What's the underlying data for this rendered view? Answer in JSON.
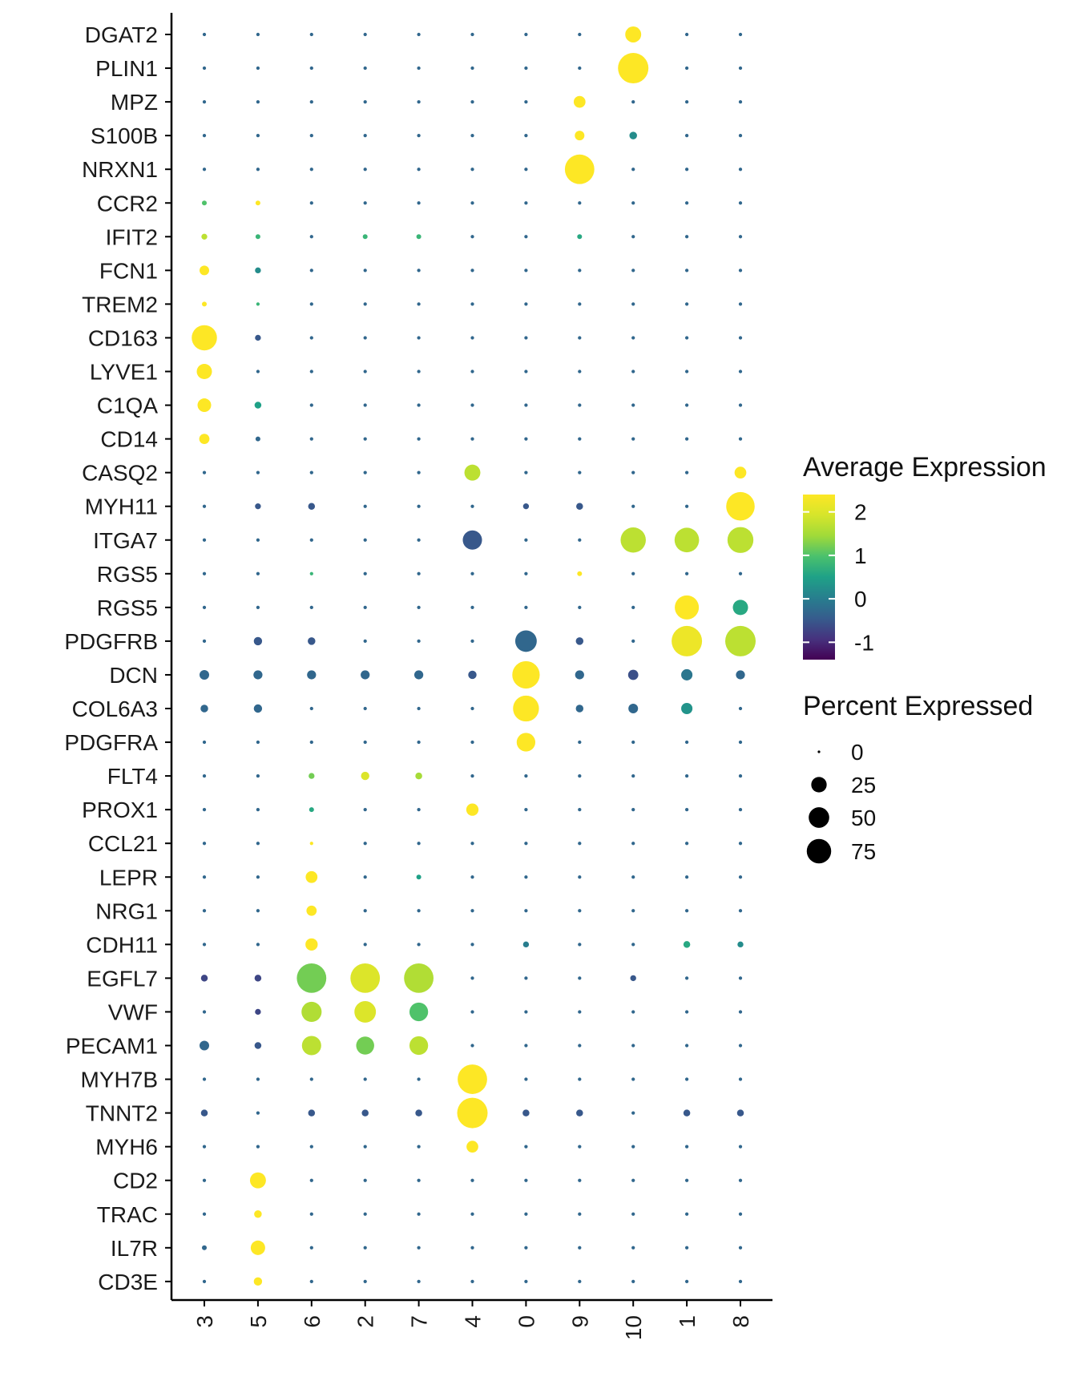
{
  "chart_data": {
    "type": "dotplot",
    "genes": [
      "DGAT2",
      "PLIN1",
      "MPZ",
      "S100B",
      "NRXN1",
      "CCR2",
      "IFIT2",
      "FCN1",
      "TREM2",
      "CD163",
      "LYVE1",
      "C1QA",
      "CD14",
      "CASQ2",
      "MYH11",
      "ITGA7",
      "RGS5",
      "RGS5",
      "PDGFRB",
      "DCN",
      "COL6A3",
      "PDGFRA",
      "FLT4",
      "PROX1",
      "CCL21",
      "LEPR",
      "NRG1",
      "CDH11",
      "EGFL7",
      "VWF",
      "PECAM1",
      "MYH7B",
      "TNNT2",
      "MYH6",
      "CD2",
      "TRAC",
      "IL7R",
      "CD3E"
    ],
    "clusters": [
      "3",
      "5",
      "6",
      "2",
      "7",
      "4",
      "0",
      "9",
      "10",
      "1",
      "8"
    ],
    "default_point": {
      "pct": 1,
      "avg": -0.3
    },
    "points": [
      {
        "gene": 0,
        "cluster": 8,
        "pct": 22,
        "avg": 2.4
      },
      {
        "gene": 1,
        "cluster": 8,
        "pct": 80,
        "avg": 2.4
      },
      {
        "gene": 2,
        "cluster": 7,
        "pct": 12,
        "avg": 2.4
      },
      {
        "gene": 3,
        "cluster": 7,
        "pct": 8,
        "avg": 2.4
      },
      {
        "gene": 3,
        "cluster": 8,
        "pct": 5,
        "avg": 0.2
      },
      {
        "gene": 4,
        "cluster": 7,
        "pct": 75,
        "avg": 2.4
      },
      {
        "gene": 5,
        "cluster": 0,
        "pct": 2,
        "avg": 1.0
      },
      {
        "gene": 5,
        "cluster": 1,
        "pct": 2,
        "avg": 2.4
      },
      {
        "gene": 6,
        "cluster": 0,
        "pct": 3,
        "avg": 1.7
      },
      {
        "gene": 6,
        "cluster": 1,
        "pct": 2,
        "avg": 0.8
      },
      {
        "gene": 6,
        "cluster": 3,
        "pct": 2,
        "avg": 0.8
      },
      {
        "gene": 6,
        "cluster": 4,
        "pct": 2,
        "avg": 0.8
      },
      {
        "gene": 6,
        "cluster": 7,
        "pct": 2,
        "avg": 0.6
      },
      {
        "gene": 7,
        "cluster": 0,
        "pct": 8,
        "avg": 2.4
      },
      {
        "gene": 7,
        "cluster": 1,
        "pct": 3,
        "avg": 0.2
      },
      {
        "gene": 8,
        "cluster": 0,
        "pct": 2,
        "avg": 2.4
      },
      {
        "gene": 8,
        "cluster": 1,
        "pct": 1,
        "avg": 0.8
      },
      {
        "gene": 9,
        "cluster": 0,
        "pct": 55,
        "avg": 2.4
      },
      {
        "gene": 9,
        "cluster": 1,
        "pct": 3,
        "avg": -0.5
      },
      {
        "gene": 10,
        "cluster": 0,
        "pct": 20,
        "avg": 2.4
      },
      {
        "gene": 11,
        "cluster": 0,
        "pct": 16,
        "avg": 2.4
      },
      {
        "gene": 11,
        "cluster": 1,
        "pct": 4,
        "avg": 0.5
      },
      {
        "gene": 12,
        "cluster": 0,
        "pct": 9,
        "avg": 2.4
      },
      {
        "gene": 12,
        "cluster": 1,
        "pct": 2,
        "avg": -0.3
      },
      {
        "gene": 13,
        "cluster": 5,
        "pct": 22,
        "avg": 1.7
      },
      {
        "gene": 13,
        "cluster": 10,
        "pct": 12,
        "avg": 2.4
      },
      {
        "gene": 14,
        "cluster": 1,
        "pct": 3,
        "avg": -0.5
      },
      {
        "gene": 14,
        "cluster": 2,
        "pct": 4,
        "avg": -0.5
      },
      {
        "gene": 14,
        "cluster": 6,
        "pct": 3,
        "avg": -0.5
      },
      {
        "gene": 14,
        "cluster": 7,
        "pct": 4,
        "avg": -0.5
      },
      {
        "gene": 14,
        "cluster": 10,
        "pct": 70,
        "avg": 2.4
      },
      {
        "gene": 15,
        "cluster": 5,
        "pct": 32,
        "avg": -0.5
      },
      {
        "gene": 15,
        "cluster": 8,
        "pct": 55,
        "avg": 1.7
      },
      {
        "gene": 15,
        "cluster": 9,
        "pct": 52,
        "avg": 1.7
      },
      {
        "gene": 15,
        "cluster": 10,
        "pct": 58,
        "avg": 1.7
      },
      {
        "gene": 16,
        "cluster": 2,
        "pct": 1,
        "avg": 0.8
      },
      {
        "gene": 16,
        "cluster": 7,
        "pct": 2,
        "avg": 2.4
      },
      {
        "gene": 17,
        "cluster": 9,
        "pct": 50,
        "avg": 2.4
      },
      {
        "gene": 17,
        "cluster": 10,
        "pct": 20,
        "avg": 0.6
      },
      {
        "gene": 18,
        "cluster": 1,
        "pct": 6,
        "avg": -0.5
      },
      {
        "gene": 18,
        "cluster": 2,
        "pct": 5,
        "avg": -0.5
      },
      {
        "gene": 18,
        "cluster": 6,
        "pct": 40,
        "avg": -0.3
      },
      {
        "gene": 18,
        "cluster": 7,
        "pct": 5,
        "avg": -0.5
      },
      {
        "gene": 18,
        "cluster": 9,
        "pct": 80,
        "avg": 2.2
      },
      {
        "gene": 18,
        "cluster": 10,
        "pct": 80,
        "avg": 1.7
      },
      {
        "gene": 19,
        "cluster": 0,
        "pct": 8,
        "avg": -0.3
      },
      {
        "gene": 19,
        "cluster": 1,
        "pct": 7,
        "avg": -0.3
      },
      {
        "gene": 19,
        "cluster": 2,
        "pct": 7,
        "avg": -0.3
      },
      {
        "gene": 19,
        "cluster": 3,
        "pct": 7,
        "avg": -0.3
      },
      {
        "gene": 19,
        "cluster": 4,
        "pct": 7,
        "avg": -0.3
      },
      {
        "gene": 19,
        "cluster": 5,
        "pct": 6,
        "avg": -0.5
      },
      {
        "gene": 19,
        "cluster": 6,
        "pct": 65,
        "avg": 2.4
      },
      {
        "gene": 19,
        "cluster": 7,
        "pct": 7,
        "avg": -0.3
      },
      {
        "gene": 19,
        "cluster": 8,
        "pct": 9,
        "avg": -0.6
      },
      {
        "gene": 19,
        "cluster": 9,
        "pct": 11,
        "avg": -0.1
      },
      {
        "gene": 19,
        "cluster": 10,
        "pct": 7,
        "avg": -0.3
      },
      {
        "gene": 20,
        "cluster": 0,
        "pct": 5,
        "avg": -0.3
      },
      {
        "gene": 20,
        "cluster": 1,
        "pct": 6,
        "avg": -0.3
      },
      {
        "gene": 20,
        "cluster": 6,
        "pct": 58,
        "avg": 2.4
      },
      {
        "gene": 20,
        "cluster": 7,
        "pct": 5,
        "avg": -0.3
      },
      {
        "gene": 20,
        "cluster": 8,
        "pct": 8,
        "avg": -0.3
      },
      {
        "gene": 20,
        "cluster": 9,
        "pct": 11,
        "avg": 0.3
      },
      {
        "gene": 21,
        "cluster": 6,
        "pct": 30,
        "avg": 2.4
      },
      {
        "gene": 22,
        "cluster": 2,
        "pct": 3,
        "avg": 1.2
      },
      {
        "gene": 22,
        "cluster": 3,
        "pct": 6,
        "avg": 2.0
      },
      {
        "gene": 22,
        "cluster": 4,
        "pct": 4,
        "avg": 1.5
      },
      {
        "gene": 23,
        "cluster": 2,
        "pct": 2,
        "avg": 0.6
      },
      {
        "gene": 23,
        "cluster": 5,
        "pct": 13,
        "avg": 2.4
      },
      {
        "gene": 24,
        "cluster": 2,
        "pct": 1,
        "avg": 2.4
      },
      {
        "gene": 25,
        "cluster": 2,
        "pct": 12,
        "avg": 2.4
      },
      {
        "gene": 25,
        "cluster": 4,
        "pct": 2,
        "avg": 0.5
      },
      {
        "gene": 26,
        "cluster": 2,
        "pct": 9,
        "avg": 2.4
      },
      {
        "gene": 27,
        "cluster": 2,
        "pct": 13,
        "avg": 2.4
      },
      {
        "gene": 27,
        "cluster": 6,
        "pct": 3,
        "avg": 0.0
      },
      {
        "gene": 27,
        "cluster": 9,
        "pct": 4,
        "avg": 0.6
      },
      {
        "gene": 27,
        "cluster": 10,
        "pct": 3,
        "avg": 0.2
      },
      {
        "gene": 28,
        "cluster": 0,
        "pct": 4,
        "avg": -0.7
      },
      {
        "gene": 28,
        "cluster": 1,
        "pct": 4,
        "avg": -0.7
      },
      {
        "gene": 28,
        "cluster": 2,
        "pct": 75,
        "avg": 1.2
      },
      {
        "gene": 28,
        "cluster": 3,
        "pct": 75,
        "avg": 2.0
      },
      {
        "gene": 28,
        "cluster": 4,
        "pct": 75,
        "avg": 1.6
      },
      {
        "gene": 28,
        "cluster": 8,
        "pct": 3,
        "avg": -0.5
      },
      {
        "gene": 29,
        "cluster": 1,
        "pct": 3,
        "avg": -0.7
      },
      {
        "gene": 29,
        "cluster": 2,
        "pct": 35,
        "avg": 1.6
      },
      {
        "gene": 29,
        "cluster": 3,
        "pct": 40,
        "avg": 2.0
      },
      {
        "gene": 29,
        "cluster": 4,
        "pct": 30,
        "avg": 1.0
      },
      {
        "gene": 30,
        "cluster": 0,
        "pct": 8,
        "avg": -0.3
      },
      {
        "gene": 30,
        "cluster": 1,
        "pct": 4,
        "avg": -0.5
      },
      {
        "gene": 30,
        "cluster": 2,
        "pct": 32,
        "avg": 1.7
      },
      {
        "gene": 30,
        "cluster": 3,
        "pct": 28,
        "avg": 1.2
      },
      {
        "gene": 30,
        "cluster": 4,
        "pct": 30,
        "avg": 1.7
      },
      {
        "gene": 31,
        "cluster": 5,
        "pct": 75,
        "avg": 2.4
      },
      {
        "gene": 32,
        "cluster": 5,
        "pct": 80,
        "avg": 2.4
      },
      {
        "gene": 32,
        "cluster": 0,
        "pct": 4,
        "avg": -0.5
      },
      {
        "gene": 32,
        "cluster": 2,
        "pct": 4,
        "avg": -0.5
      },
      {
        "gene": 32,
        "cluster": 3,
        "pct": 4,
        "avg": -0.5
      },
      {
        "gene": 32,
        "cluster": 4,
        "pct": 4,
        "avg": -0.5
      },
      {
        "gene": 32,
        "cluster": 6,
        "pct": 4,
        "avg": -0.5
      },
      {
        "gene": 32,
        "cluster": 7,
        "pct": 4,
        "avg": -0.5
      },
      {
        "gene": 32,
        "cluster": 9,
        "pct": 4,
        "avg": -0.5
      },
      {
        "gene": 32,
        "cluster": 10,
        "pct": 4,
        "avg": -0.5
      },
      {
        "gene": 33,
        "cluster": 5,
        "pct": 12,
        "avg": 2.4
      },
      {
        "gene": 34,
        "cluster": 1,
        "pct": 22,
        "avg": 2.4
      },
      {
        "gene": 35,
        "cluster": 1,
        "pct": 5,
        "avg": 2.4
      },
      {
        "gene": 36,
        "cluster": 1,
        "pct": 18,
        "avg": 2.4
      },
      {
        "gene": 36,
        "cluster": 0,
        "pct": 2,
        "avg": -0.3
      },
      {
        "gene": 37,
        "cluster": 1,
        "pct": 6,
        "avg": 2.4
      }
    ],
    "color_scale": {
      "title": "Average Expression",
      "domain": [
        -1.4,
        2.4
      ],
      "ticks": [
        2,
        1,
        0,
        -1
      ],
      "tick_labels": [
        "2",
        "1",
        "0",
        "-1"
      ],
      "palette": "viridis"
    },
    "size_scale": {
      "title": "Percent Expressed",
      "values": [
        0,
        25,
        50,
        75
      ],
      "labels": [
        "0",
        "25",
        "50",
        "75"
      ],
      "max_pct": 80
    },
    "axis": {
      "x_label": "",
      "y_label": "",
      "x_tick_rotation": 90
    }
  }
}
